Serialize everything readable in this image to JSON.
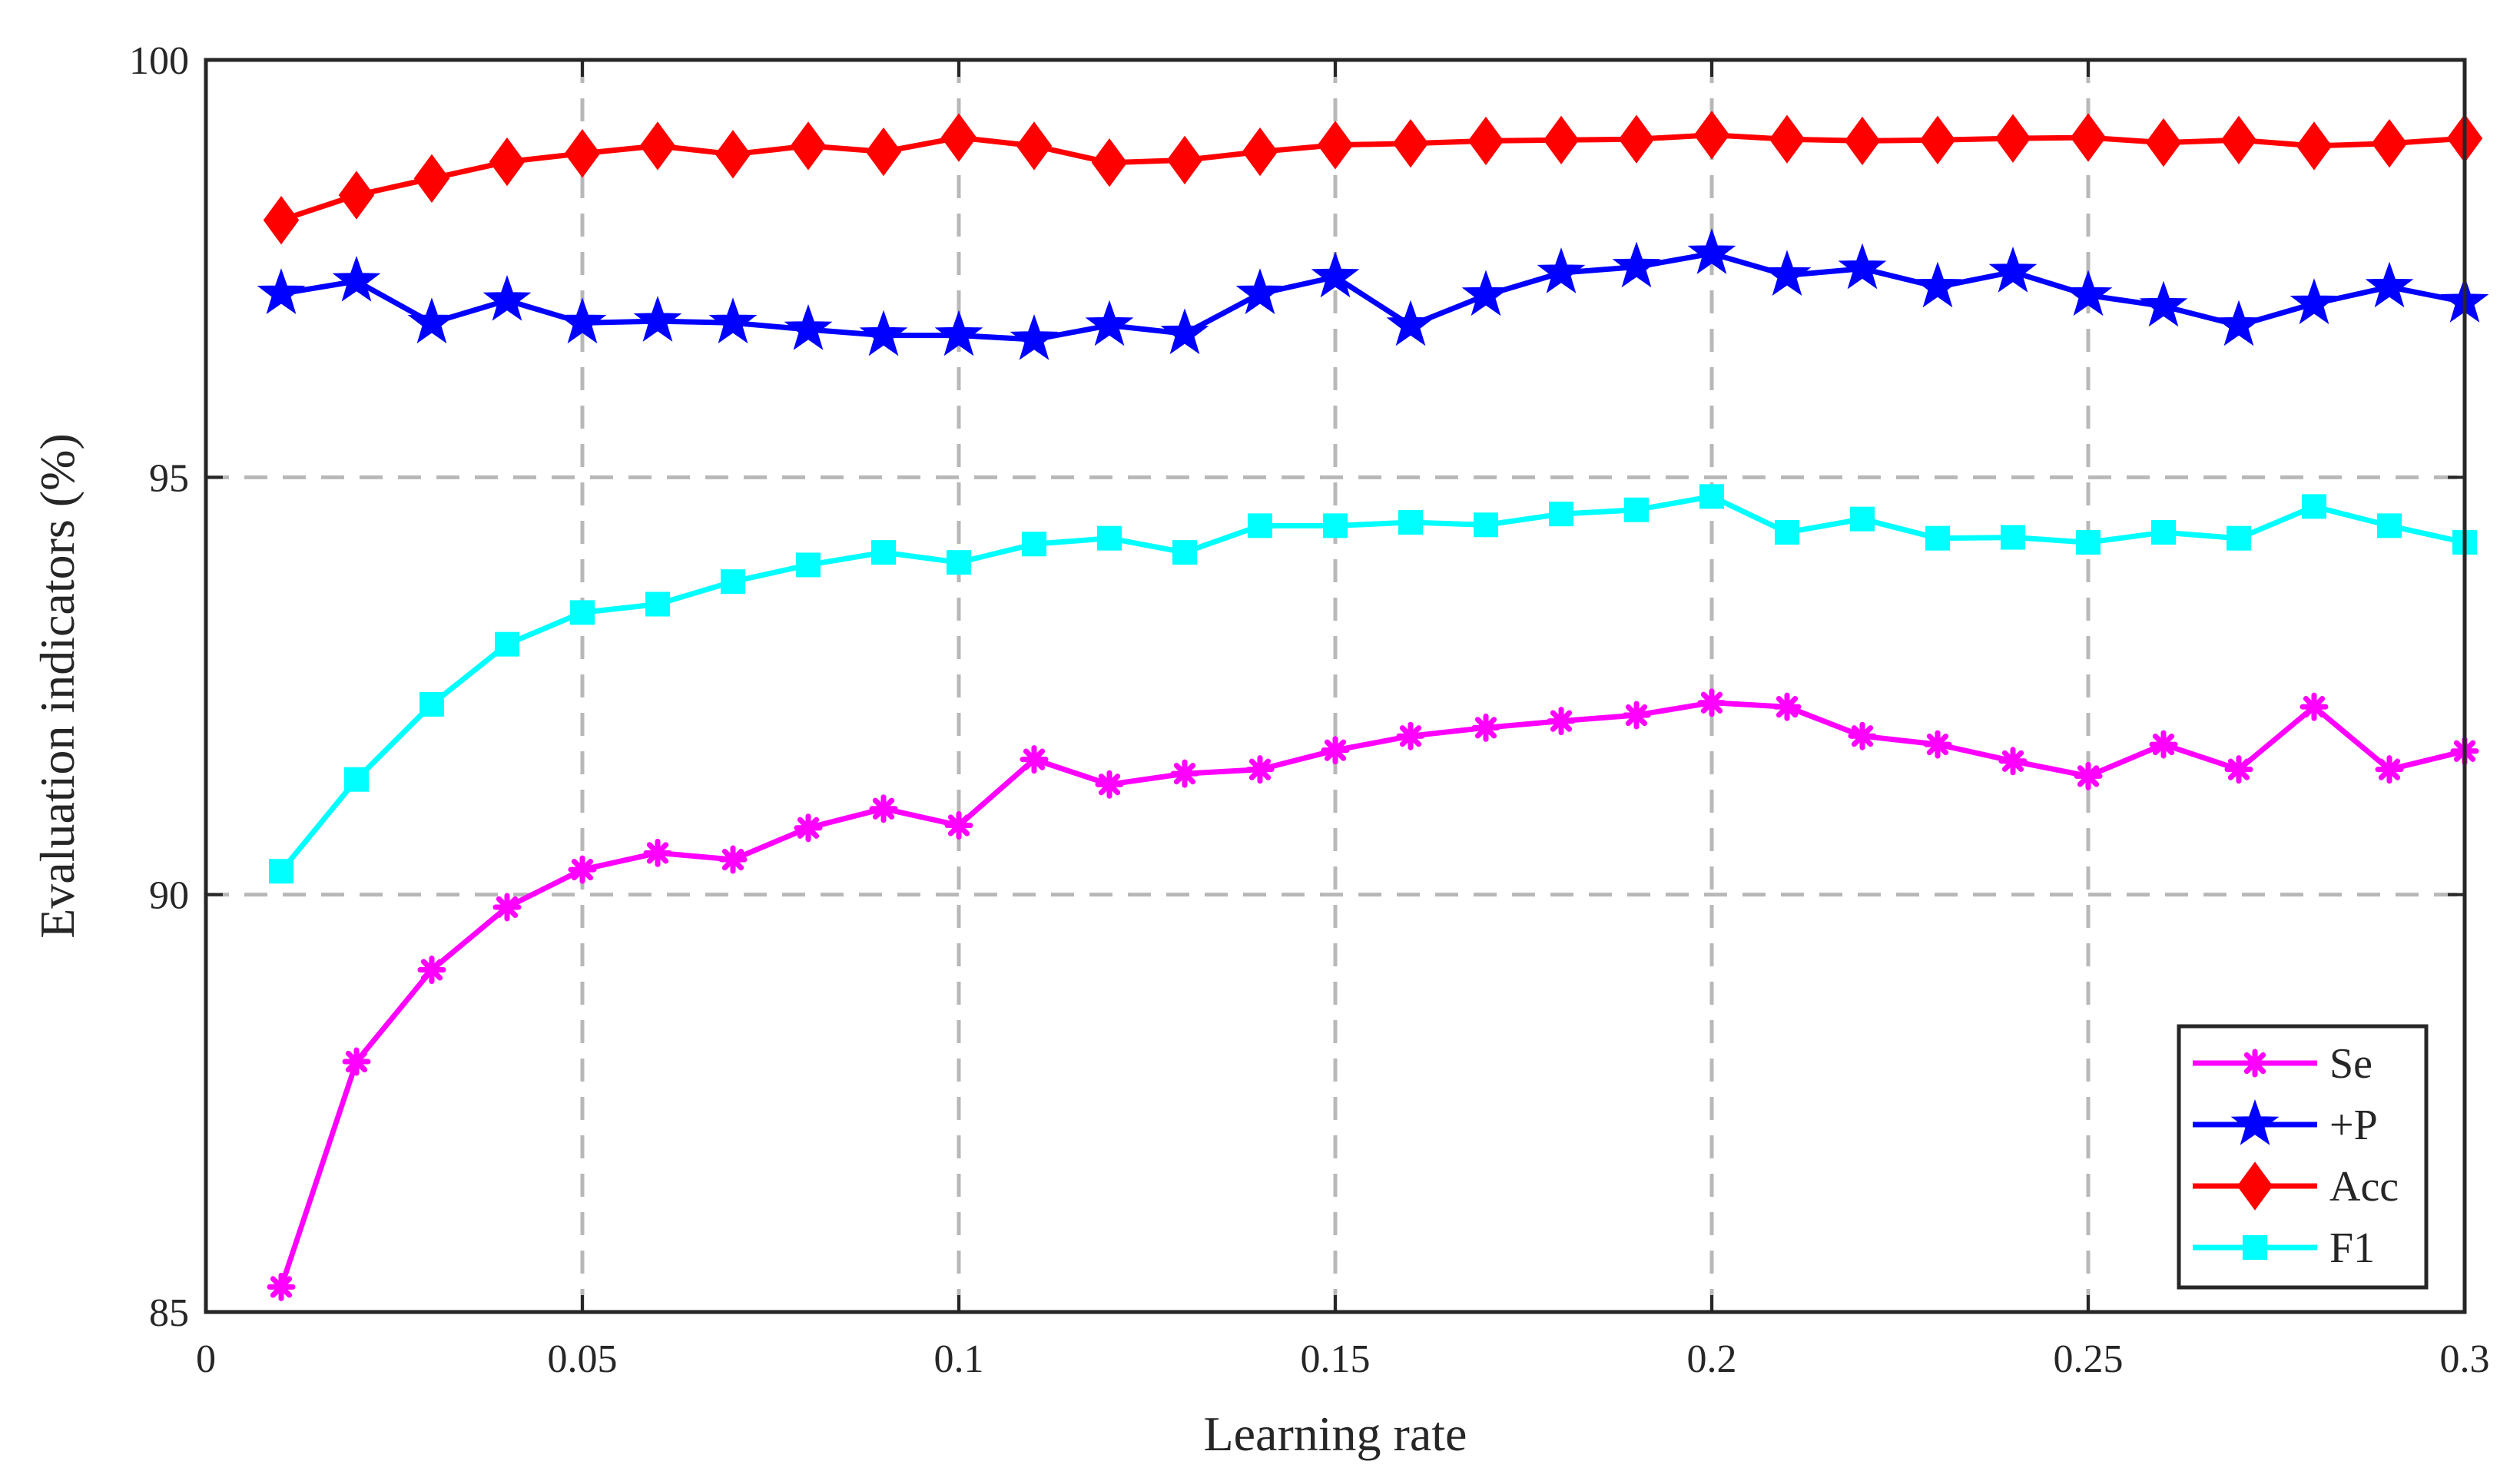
{
  "chart_data": {
    "type": "line",
    "title": "",
    "xlabel": "Learning rate",
    "ylabel": "Evaluation indicators (%)",
    "xlim": [
      0,
      0.3
    ],
    "ylim": [
      85,
      100
    ],
    "grid": true,
    "legend_position": "bottom-right",
    "x_ticks": [
      0,
      0.05,
      0.1,
      0.15,
      0.2,
      0.25,
      0.3
    ],
    "x_tick_labels": [
      "0",
      "0.05",
      "0.1",
      "0.15",
      "0.2",
      "0.25",
      "0.3"
    ],
    "y_ticks": [
      85,
      90,
      95,
      100
    ],
    "y_tick_labels": [
      "85",
      "90",
      "95",
      "100"
    ],
    "x": [
      0.01,
      0.02,
      0.03,
      0.04,
      0.05,
      0.06,
      0.07,
      0.08,
      0.09,
      0.1,
      0.11,
      0.12,
      0.13,
      0.14,
      0.15,
      0.16,
      0.17,
      0.18,
      0.19,
      0.2,
      0.21,
      0.22,
      0.23,
      0.24,
      0.25,
      0.26,
      0.27,
      0.28,
      0.29,
      0.3
    ],
    "series": [
      {
        "name": "Se",
        "color": "#ff00ff",
        "marker": "asterisk",
        "values": [
          85.3,
          88.0,
          89.1,
          89.85,
          90.3,
          90.5,
          90.42,
          90.8,
          91.03,
          90.83,
          91.62,
          91.32,
          91.45,
          91.5,
          91.73,
          91.9,
          92.0,
          92.08,
          92.15,
          92.3,
          92.25,
          91.9,
          91.8,
          91.6,
          91.42,
          91.8,
          91.5,
          92.25,
          91.5,
          91.72
        ]
      },
      {
        "name": "+P",
        "color": "#0000ff",
        "marker": "star",
        "values": [
          97.2,
          97.35,
          96.85,
          97.12,
          96.85,
          96.87,
          96.85,
          96.77,
          96.7,
          96.7,
          96.65,
          96.82,
          96.72,
          97.2,
          97.4,
          96.82,
          97.18,
          97.45,
          97.52,
          97.68,
          97.42,
          97.5,
          97.28,
          97.46,
          97.18,
          97.05,
          96.82,
          97.08,
          97.28,
          97.1
        ]
      },
      {
        "name": "Acc",
        "color": "#ff0000",
        "marker": "diamond",
        "values": [
          98.08,
          98.38,
          98.58,
          98.78,
          98.88,
          98.97,
          98.87,
          98.97,
          98.9,
          99.07,
          98.97,
          98.77,
          98.8,
          98.9,
          98.98,
          99.0,
          99.03,
          99.04,
          99.05,
          99.1,
          99.05,
          99.03,
          99.04,
          99.06,
          99.07,
          99.01,
          99.04,
          98.97,
          99.0,
          99.06
        ]
      },
      {
        "name": "F1",
        "color": "#00ffff",
        "marker": "square",
        "values": [
          90.28,
          91.38,
          92.28,
          93.0,
          93.38,
          93.48,
          93.75,
          93.95,
          94.1,
          93.98,
          94.2,
          94.27,
          94.1,
          94.42,
          94.42,
          94.46,
          94.43,
          94.56,
          94.61,
          94.77,
          94.34,
          94.5,
          94.27,
          94.28,
          94.22,
          94.34,
          94.27,
          94.65,
          94.42,
          94.22
        ]
      }
    ]
  }
}
